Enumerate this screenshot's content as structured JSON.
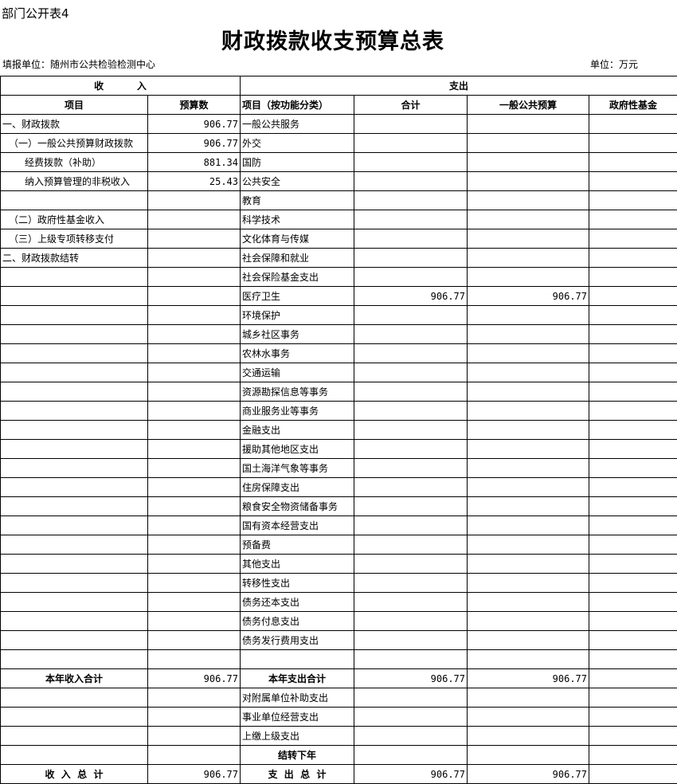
{
  "form_no": "部门公开表4",
  "title": "财政拨款收支预算总表",
  "unit_label": "填报单位：随州市公共检验检测中心",
  "currency": "单位：万元",
  "headers": {
    "income": "收          入",
    "expense": "支出",
    "item": "项目",
    "budget": "预算数",
    "func_item": "项目（按功能分类）",
    "total": "合计",
    "general": "一般公共预算",
    "fund": "政府性基金"
  },
  "rows": [
    [
      "一、财政拨款",
      "906.77",
      "一般公共服务",
      "",
      "",
      ""
    ],
    [
      "（一）一般公共预算财政拨款",
      "906.77",
      "外交",
      "",
      "",
      ""
    ],
    [
      "经费拨款（补助）",
      "881.34",
      "国防",
      "",
      "",
      ""
    ],
    [
      "纳入预算管理的非税收入",
      "25.43",
      "公共安全",
      "",
      "",
      ""
    ],
    [
      "",
      "",
      "教育",
      "",
      "",
      ""
    ],
    [
      "（二）政府性基金收入",
      "",
      "科学技术",
      "",
      "",
      ""
    ],
    [
      "（三）上级专项转移支付",
      "",
      "文化体育与传媒",
      "",
      "",
      ""
    ],
    [
      "二、财政拨款结转",
      "",
      "社会保障和就业",
      "",
      "",
      ""
    ],
    [
      "",
      "",
      "社会保险基金支出",
      "",
      "",
      ""
    ],
    [
      "",
      "",
      "医疗卫生",
      "906.77",
      "906.77",
      ""
    ],
    [
      "",
      "",
      "环境保护",
      "",
      "",
      ""
    ],
    [
      "",
      "",
      "城乡社区事务",
      "",
      "",
      ""
    ],
    [
      "",
      "",
      "农林水事务",
      "",
      "",
      ""
    ],
    [
      "",
      "",
      "交通运输",
      "",
      "",
      ""
    ],
    [
      "",
      "",
      "资源勘探信息等事务",
      "",
      "",
      ""
    ],
    [
      "",
      "",
      "商业服务业等事务",
      "",
      "",
      ""
    ],
    [
      "",
      "",
      "金融支出",
      "",
      "",
      ""
    ],
    [
      "",
      "",
      "援助其他地区支出",
      "",
      "",
      ""
    ],
    [
      "",
      "",
      "国土海洋气象等事务",
      "",
      "",
      ""
    ],
    [
      "",
      "",
      "住房保障支出",
      "",
      "",
      ""
    ],
    [
      "",
      "",
      "粮食安全物资储备事务",
      "",
      "",
      ""
    ],
    [
      "",
      "",
      "国有资本经营支出",
      "",
      "",
      ""
    ],
    [
      "",
      "",
      "预备费",
      "",
      "",
      ""
    ],
    [
      "",
      "",
      "其他支出",
      "",
      "",
      ""
    ],
    [
      "",
      "",
      "转移性支出",
      "",
      "",
      ""
    ],
    [
      "",
      "",
      "债务还本支出",
      "",
      "",
      ""
    ],
    [
      "",
      "",
      "债务付息支出",
      "",
      "",
      ""
    ],
    [
      "",
      "",
      "债务发行费用支出",
      "",
      "",
      ""
    ],
    [
      "",
      "",
      "",
      "",
      "",
      ""
    ],
    [
      "本年收入合计",
      "906.77",
      "本年支出合计",
      "906.77",
      "906.77",
      ""
    ],
    [
      "",
      "",
      "对附属单位补助支出",
      "",
      "",
      ""
    ],
    [
      "",
      "",
      "事业单位经营支出",
      "",
      "",
      ""
    ],
    [
      "",
      "",
      "上缴上级支出",
      "",
      "",
      ""
    ],
    [
      "",
      "",
      "结转下年",
      "",
      "",
      ""
    ],
    [
      "收  入  总  计",
      "906.77",
      "支  出  总  计",
      "906.77",
      "906.77",
      ""
    ]
  ]
}
